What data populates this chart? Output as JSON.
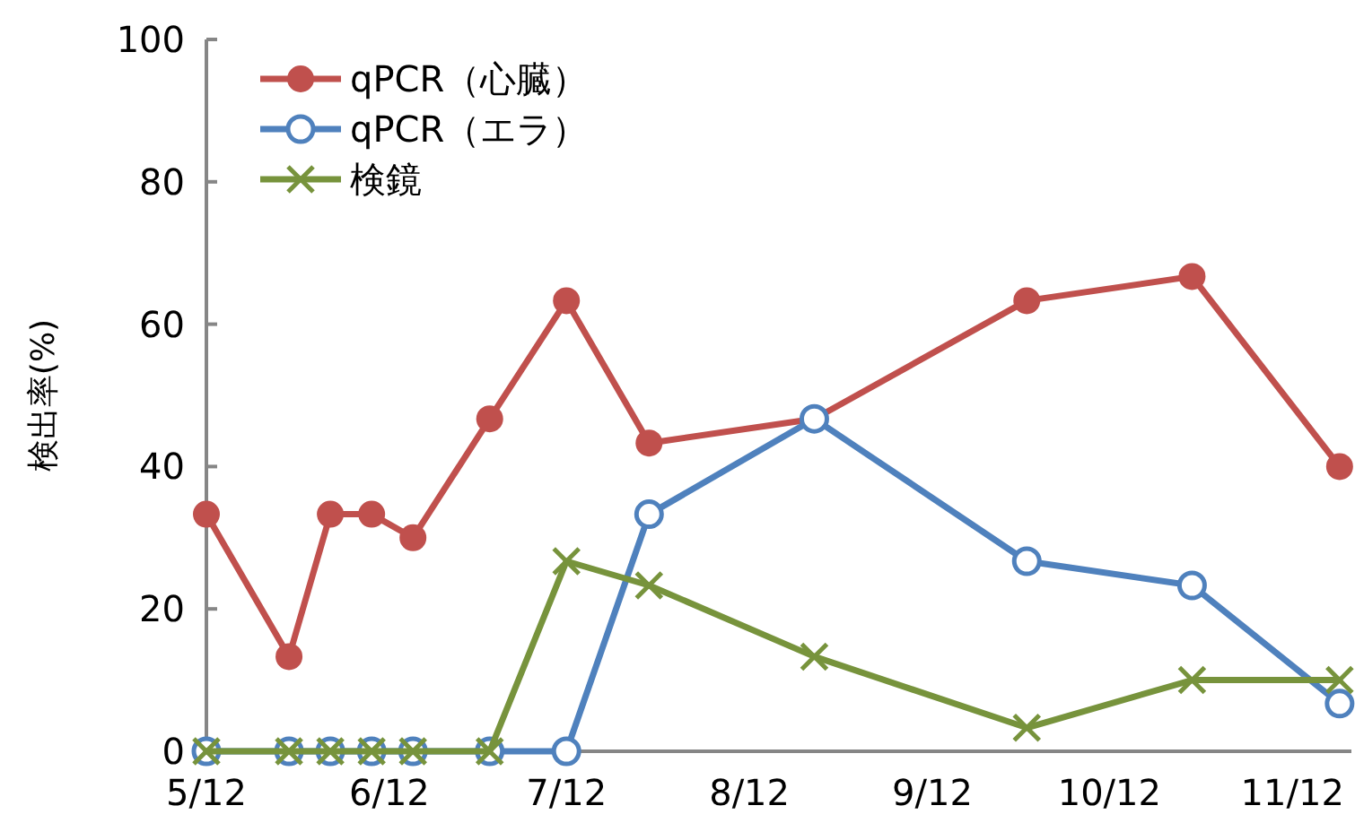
{
  "chart_data": {
    "type": "line",
    "ylabel": "検出率(%)",
    "x": [
      "--05-12",
      "--05-26",
      "--06-02",
      "--06-09",
      "--06-16",
      "--06-29",
      "--07-12",
      "--07-26",
      "--08-23",
      "--09-28",
      "--10-26",
      "--11-20"
    ],
    "series": [
      {
        "name": "qPCR（心臓）",
        "color": "#c0504d",
        "marker": "circle",
        "values": [
          33.3,
          13.3,
          33.3,
          33.3,
          30,
          46.7,
          63.3,
          43.3,
          46.7,
          63.3,
          66.7,
          40
        ]
      },
      {
        "name": "qPCR（エラ）",
        "color": "#4f81bd",
        "marker": "circle_open",
        "values": [
          0,
          0,
          0,
          0,
          0,
          0,
          0,
          33.3,
          46.7,
          26.7,
          23.3,
          6.7
        ]
      },
      {
        "name": "検鏡",
        "color": "#77933c",
        "marker": "cross",
        "values": [
          0,
          0,
          0,
          0,
          0,
          0,
          26.7,
          23.3,
          13.3,
          3.3,
          10,
          10
        ]
      }
    ],
    "xlim": [
      "--05-12",
      "--11-22"
    ],
    "xticks": [
      {
        "value": "--05-12",
        "label": "5/12"
      },
      {
        "value": "--06-12",
        "label": "6/12"
      },
      {
        "value": "--07-12",
        "label": "7/12"
      },
      {
        "value": "--08-12",
        "label": "8/12"
      },
      {
        "value": "--09-12",
        "label": "9/12"
      },
      {
        "value": "--10-12",
        "label": "10/12"
      },
      {
        "value": "--11-12",
        "label": "11/12"
      }
    ],
    "ylim": [
      0,
      100
    ],
    "yticks": [
      0,
      20,
      40,
      60,
      80,
      100
    ],
    "grid": false,
    "legend": "top left",
    "line_style": "solid"
  }
}
